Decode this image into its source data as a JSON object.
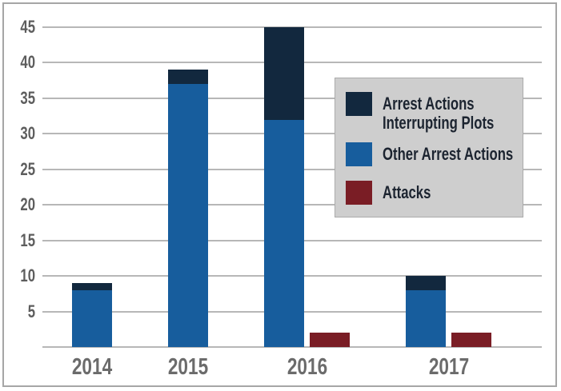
{
  "chart_data": {
    "type": "bar",
    "subtype": "stacked-and-grouped",
    "categories": [
      "2014",
      "2015",
      "2016",
      "2017"
    ],
    "series": [
      {
        "name": "Arrest Actions Interrupting Plots",
        "color": "#12283e",
        "stack": "arrest-actions",
        "values": [
          1,
          2,
          13,
          2
        ]
      },
      {
        "name": "Other Arrest Actions",
        "color": "#175d9d",
        "stack": "arrest-actions",
        "values": [
          8,
          37,
          32,
          8
        ]
      },
      {
        "name": "Attacks",
        "color": "#7a1d25",
        "stack": "attacks",
        "values": [
          0,
          0,
          2,
          2
        ]
      }
    ],
    "stack_totals_arrest_actions": [
      9,
      39,
      45,
      10
    ],
    "title": "",
    "xlabel": "",
    "ylabel": "",
    "ylim": [
      0,
      45
    ],
    "ytick_step": 5,
    "grid": "horizontal",
    "legend_position": "inside-upper-right"
  },
  "style_colors": {
    "navy": "#12283e",
    "blue": "#175d9d",
    "dark_red": "#7a1d25",
    "gridline": "#b7b7b7",
    "frame_border": "#a6a6a6",
    "axis_text": "#5d5d5d",
    "xaxis_text": "#6b6b6b",
    "legend_background": "#cecece",
    "legend_border": "#ababab",
    "legend_text": "#1c2430"
  }
}
